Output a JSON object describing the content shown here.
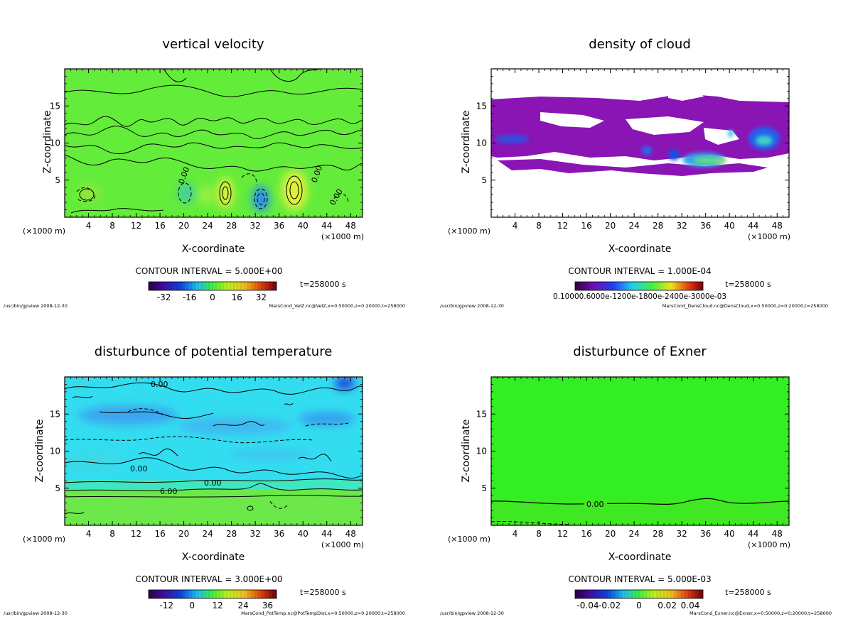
{
  "chart_data": [
    {
      "type": "heatmap",
      "title": "vertical velocity",
      "xlabel": "X-coordinate",
      "ylabel": "Z-coordinate",
      "xunit_left": "(×1000 m)",
      "xunit_right": "(×1000 m)",
      "xlim": [
        0,
        50
      ],
      "ylim": [
        0,
        20
      ],
      "xticks": [
        4,
        8,
        12,
        16,
        20,
        24,
        28,
        32,
        36,
        40,
        44,
        48
      ],
      "yticks": [
        5,
        10,
        15
      ],
      "contour_interval": "CONTOUR INTERVAL = 5.000E+00",
      "time_label": "t=258000 s",
      "colorbar_ticks": [
        "-32",
        "-16",
        "0",
        "16",
        "32"
      ],
      "contour_labels": [
        "0.00",
        "0.00",
        "0.00"
      ],
      "footer_left": "/usr/bin/gpview  2008-12-30",
      "footer_right": "MarsCond_VelZ.nc@VelZ,x=0:50000,z=0:20000,t=258000",
      "background_color": "#64ec3a",
      "field_features": [
        {
          "x": 38.5,
          "z": 4.0,
          "value": 20
        },
        {
          "x": 27.0,
          "z": 3.5,
          "value": 20
        },
        {
          "x": 33.0,
          "z": 2.5,
          "value": -28
        },
        {
          "x": 20.0,
          "z": 4.0,
          "value": -12
        },
        {
          "x": 4.0,
          "z": 4.0,
          "value": 8
        }
      ]
    },
    {
      "type": "heatmap",
      "title": "density of cloud",
      "xlabel": "X-coordinate",
      "ylabel": "Z-coordinate",
      "xunit_left": "(×1000 m)",
      "xunit_right": "(×1000 m)",
      "xlim": [
        0,
        50
      ],
      "ylim": [
        0,
        20
      ],
      "xticks": [
        4,
        8,
        12,
        16,
        20,
        24,
        28,
        32,
        36,
        40,
        44,
        48
      ],
      "yticks": [
        5,
        10,
        15
      ],
      "contour_interval": "CONTOUR INTERVAL = 1.000E-04",
      "time_label": "t=258000 s",
      "colorbar_ticks": [
        "0.10000.6000e-1200e-1800e-2400e-3000e-03"
      ],
      "footer_left": "/usr/bin/gpview  2008-12-30",
      "footer_right": "MarsCond_DensCloud.nc@DensCloud,x=0:50000,z=0:20000,t=258000",
      "background_color": "#ffffff"
    },
    {
      "type": "heatmap",
      "title": "disturbunce of potential temperature",
      "xlabel": "X-coordinate",
      "ylabel": "Z-coordinate",
      "xunit_left": "(×1000 m)",
      "xunit_right": "(×1000 m)",
      "xlim": [
        0,
        50
      ],
      "ylim": [
        0,
        20
      ],
      "xticks": [
        4,
        8,
        12,
        16,
        20,
        24,
        28,
        32,
        36,
        40,
        44,
        48
      ],
      "yticks": [
        5,
        10,
        15
      ],
      "contour_interval": "CONTOUR INTERVAL = 3.000E+00",
      "time_label": "t=258000 s",
      "colorbar_ticks": [
        "-12",
        "0",
        "12",
        "24",
        "36"
      ],
      "contour_labels": [
        "0.00",
        "0.00",
        "0.00",
        "6.00"
      ],
      "footer_left": "/usr/bin/gpview  2008-12-30",
      "footer_right": "MarsCond_PotTemp.nc@PotTempDist,x=0:50000,z=0:20000,t=258000",
      "background_color": "#33ddf0"
    },
    {
      "type": "heatmap",
      "title": "disturbunce of Exner",
      "xlabel": "X-coordinate",
      "ylabel": "Z-coordinate",
      "xunit_left": "(×1000 m)",
      "xunit_right": "(×1000 m)",
      "xlim": [
        0,
        50
      ],
      "ylim": [
        0,
        20
      ],
      "xticks": [
        4,
        8,
        12,
        16,
        20,
        24,
        28,
        32,
        36,
        40,
        44,
        48
      ],
      "yticks": [
        5,
        10,
        15
      ],
      "contour_interval": "CONTOUR INTERVAL = 5.000E-03",
      "time_label": "t=258000 s",
      "colorbar_ticks": [
        "-0.04",
        "-0.02",
        "0",
        "0.02",
        "0.04"
      ],
      "contour_labels": [
        "0.00"
      ],
      "footer_left": "/usr/bin/gpview  2008-12-30",
      "footer_right": "MarsCond_Exner.nc@Exner,x=0:50000,z=0:20000,t=258000",
      "background_color": "#33ee22"
    }
  ]
}
